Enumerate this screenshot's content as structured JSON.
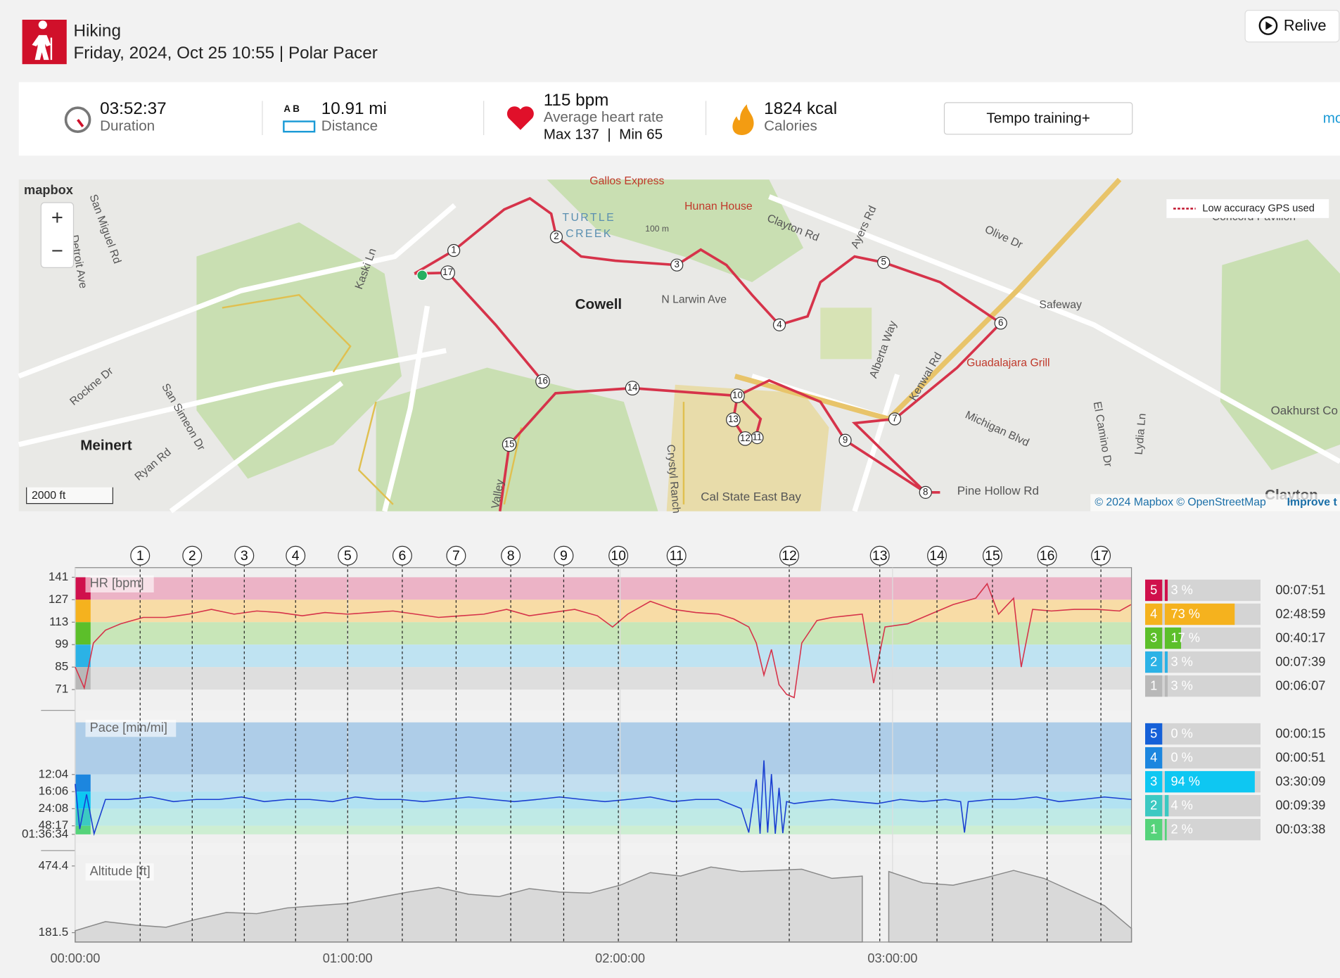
{
  "header": {
    "sport": "Hiking",
    "subtitle": "Friday, 2024, Oct 25 10:55 | Polar Pacer",
    "relive": "Relive"
  },
  "summary": {
    "duration": "03:52:37",
    "duration_label": "Duration",
    "ab": "A  B",
    "distance": "10.91 mi",
    "distance_label": "Distance",
    "hr": "115 bpm",
    "hr_label": "Average heart rate",
    "hr_maxmin": "Max 137  |  Min 65",
    "calories": "1824 kcal",
    "calories_label": "Calories",
    "training": "Tempo training+",
    "more": "mo"
  },
  "map": {
    "logo": "mapbox",
    "zoom_in": "+",
    "zoom_out": "−",
    "legend": "Low accuracy GPS used",
    "scale": "2000 ft",
    "attribution": "© 2024 Mapbox © OpenStreetMap",
    "improve": "Improve t",
    "labels": [
      "Gallos Express",
      "Hunan House",
      "Clayton Rd",
      "TURTLE",
      "CREEK",
      "100 m",
      "Ayers Rd",
      "Olive Dr",
      "Concord Pavilion",
      "Safeway",
      "Cowell",
      "N Larwin Ave",
      "Alberta Way",
      "Guadalajara Grill",
      "Kenwal Rd",
      "Michigan Blvd",
      "El Camino Dr",
      "Lydia Ln",
      "Oakhurst Co",
      "Pine Hollow Rd",
      "Cal State East Bay",
      "Crystyl Ranch",
      "Valley",
      "San Miguel Rd",
      "Detroit Ave",
      "Kaski Ln",
      "Rockne Dr",
      "San Simeon Dr",
      "Meinert",
      "Ryan Rd",
      "Clayton"
    ],
    "markers": [
      1,
      2,
      3,
      4,
      5,
      6,
      7,
      8,
      9,
      10,
      11,
      12,
      13,
      14,
      15,
      16,
      17
    ]
  },
  "charts": {
    "xlim": [
      0,
      13957
    ],
    "xticks": [
      {
        "value": 0,
        "label": "00:00:00"
      },
      {
        "value": 3600,
        "label": "01:00:00"
      },
      {
        "value": 7200,
        "label": "02:00:00"
      },
      {
        "value": 10800,
        "label": "03:00:00"
      }
    ],
    "laps": [
      {
        "label": 1,
        "t": 858
      },
      {
        "label": 2,
        "t": 1546
      },
      {
        "label": 3,
        "t": 2234
      },
      {
        "label": 4,
        "t": 2912
      },
      {
        "label": 5,
        "t": 3600
      },
      {
        "label": 6,
        "t": 4322
      },
      {
        "label": 7,
        "t": 5033
      },
      {
        "label": 8,
        "t": 5755
      },
      {
        "label": 9,
        "t": 6455
      },
      {
        "label": 10,
        "t": 7177
      },
      {
        "label": 11,
        "t": 7945
      },
      {
        "label": 12,
        "t": 9435
      },
      {
        "label": 13,
        "t": 10631
      },
      {
        "label": 14,
        "t": 11387
      },
      {
        "label": 15,
        "t": 12120
      },
      {
        "label": 16,
        "t": 12842
      },
      {
        "label": 17,
        "t": 13553
      }
    ],
    "hr": {
      "title": "HR [bpm]",
      "ylim": [
        58,
        147
      ],
      "yticks": [
        141,
        127,
        113,
        99,
        85,
        71
      ],
      "color": "#d6334a",
      "zones": [
        {
          "zone": 5,
          "from": 127,
          "to": 141,
          "color": "#ecb3c6",
          "chip": "#d0104c",
          "pct": 3,
          "pct_label": "3 %",
          "time": "00:07:51"
        },
        {
          "zone": 4,
          "from": 113,
          "to": 127,
          "color": "#f8dca6",
          "chip": "#f5b21e",
          "pct": 73,
          "pct_label": "73 %",
          "time": "02:48:59"
        },
        {
          "zone": 3,
          "from": 99,
          "to": 113,
          "color": "#c8e6b8",
          "chip": "#5cbf2a",
          "pct": 17,
          "pct_label": "17 %",
          "time": "00:40:17"
        },
        {
          "zone": 2,
          "from": 85,
          "to": 99,
          "color": "#bfe3f2",
          "chip": "#2bb2e6",
          "pct": 3,
          "pct_label": "3 %",
          "time": "00:07:39"
        },
        {
          "zone": 1,
          "from": 71,
          "to": 85,
          "color": "#dedede",
          "chip": "#b8b8b8",
          "pct": 3,
          "pct_label": "3 %",
          "time": "00:06:07"
        }
      ],
      "t": [
        0,
        120,
        240,
        400,
        600,
        900,
        1200,
        1500,
        1800,
        2100,
        2400,
        2700,
        3000,
        3300,
        3600,
        3900,
        4200,
        4500,
        4800,
        5100,
        5400,
        5700,
        6000,
        6300,
        6600,
        6900,
        7100,
        7300,
        7600,
        7900,
        8200,
        8500,
        8700,
        8900,
        9000,
        9100,
        9200,
        9300,
        9400,
        9500,
        9600,
        9800,
        10000,
        10200,
        10400,
        10550,
        10700,
        11000,
        11300,
        11600,
        11900,
        12050,
        12200,
        12400,
        12500,
        12650,
        12900,
        13200,
        13500,
        13800,
        13950
      ],
      "values": [
        85,
        72,
        100,
        108,
        112,
        116,
        116,
        118,
        121,
        118,
        120,
        119,
        117,
        119,
        118,
        119,
        120,
        118,
        116,
        117,
        118,
        121,
        117,
        119,
        121,
        117,
        110,
        118,
        126,
        121,
        119,
        118,
        115,
        110,
        100,
        80,
        96,
        74,
        68,
        66,
        100,
        114,
        116,
        117,
        118,
        75,
        110,
        112,
        118,
        124,
        128,
        137,
        118,
        128,
        85,
        121,
        120,
        121,
        121,
        120,
        124
      ]
    },
    "pace": {
      "title": "Pace [min/mi]",
      "ylim_mph": [
        0,
        8.76
      ],
      "yticks": [
        {
          "value": 12.07,
          "label": "12:04"
        },
        {
          "value": 16.1,
          "label": "16:06"
        },
        {
          "value": 24.13,
          "label": "24:08"
        },
        {
          "value": 48.28,
          "label": "48:17"
        },
        {
          "value": 96.57,
          "label": "01:36:34"
        }
      ],
      "color": "#1a3fd1",
      "zones": [
        {
          "zone": 5,
          "from": 0,
          "to": 12.07,
          "color": "#aecde8",
          "chip": "#1560d8",
          "pct": 0,
          "pct_label": "0 %",
          "time": "00:00:15"
        },
        {
          "zone": 4,
          "from": 12.07,
          "to": 16.1,
          "color": "#c3dff0",
          "chip": "#1c86df",
          "pct": 0,
          "pct_label": "0 %",
          "time": "00:00:51"
        },
        {
          "zone": 3,
          "from": 16.1,
          "to": 24.13,
          "color": "#b2e2f2",
          "chip": "#0ec7f2",
          "pct": 94,
          "pct_label": "94 %",
          "time": "03:30:09"
        },
        {
          "zone": 2,
          "from": 24.13,
          "to": 48.28,
          "color": "#bfeae6",
          "chip": "#3cc9c2",
          "pct": 4,
          "pct_label": "4 %",
          "time": "00:09:39"
        },
        {
          "zone": 1,
          "from": 48.28,
          "to": 96.57,
          "color": "#cdeed2",
          "chip": "#55d37a",
          "pct": 2,
          "pct_label": "2 %",
          "time": "00:03:38"
        }
      ],
      "t": [
        0,
        60,
        150,
        250,
        400,
        700,
        1000,
        1300,
        1600,
        1900,
        2200,
        2500,
        2800,
        3100,
        3400,
        3700,
        4000,
        4300,
        4600,
        4900,
        5200,
        5500,
        5800,
        6100,
        6400,
        6700,
        7000,
        7300,
        7600,
        7900,
        8200,
        8500,
        8800,
        8900,
        9000,
        9050,
        9100,
        9150,
        9200,
        9250,
        9300,
        9350,
        9400,
        9500,
        9700,
        10000,
        10300,
        10600,
        10900,
        11200,
        11500,
        11700,
        11750,
        11800,
        12100,
        12400,
        12700,
        13000,
        13300,
        13600,
        13957
      ],
      "values": [
        14,
        60,
        17,
        90,
        19,
        19,
        18,
        20,
        19,
        19,
        18,
        20,
        19,
        19,
        20,
        18,
        19,
        19,
        20,
        19,
        18,
        19,
        20,
        19,
        18,
        19,
        20,
        19,
        18,
        20,
        19,
        19,
        24,
        80,
        13,
        90,
        10,
        80,
        12,
        90,
        15,
        85,
        20,
        21,
        20,
        19,
        20,
        21,
        19,
        20,
        19,
        20,
        80,
        20,
        19,
        19,
        18,
        20,
        19,
        18,
        19
      ]
    },
    "altitude": {
      "title": "Altitude [ft]",
      "ylim": [
        140.2,
        523.2
      ],
      "yticks": [
        474.4,
        181.5
      ],
      "color": "#888",
      "t": [
        0,
        400,
        800,
        1200,
        1600,
        2000,
        2400,
        2800,
        3200,
        3600,
        4000,
        4400,
        4800,
        5200,
        5600,
        6000,
        6400,
        6800,
        7200,
        7600,
        8000,
        8400,
        8800,
        9200,
        9600,
        10000,
        10400,
        10500,
        10600,
        10750,
        11200,
        11600,
        12000,
        12400,
        12800,
        13200,
        13600,
        13957
      ],
      "values": [
        190,
        230,
        215,
        205,
        240,
        270,
        265,
        290,
        300,
        310,
        335,
        360,
        380,
        350,
        340,
        375,
        360,
        355,
        390,
        445,
        430,
        470,
        450,
        455,
        460,
        420,
        430,
        null,
        null,
        450,
        400,
        390,
        420,
        455,
        420,
        360,
        300,
        200
      ]
    }
  }
}
